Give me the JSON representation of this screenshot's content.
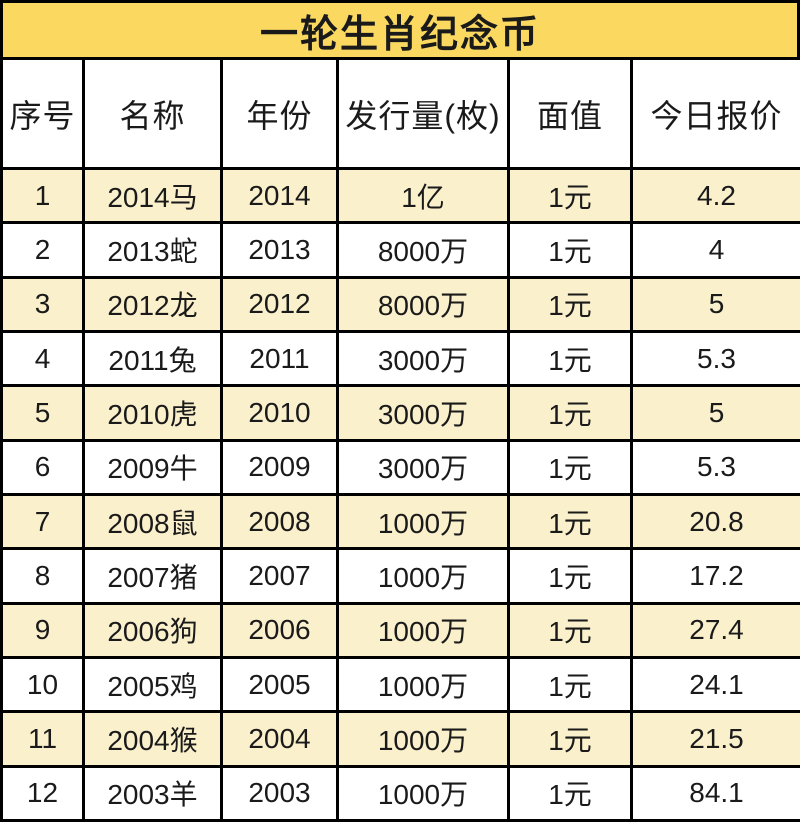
{
  "title": "一轮生肖纪念币",
  "colors": {
    "title_bg": "#FBD961",
    "alt_row_bg": "#FAF0CC",
    "row_bg": "#FFFFFF",
    "border": "#000000",
    "text": "#1A1A1A"
  },
  "chart_data": {
    "type": "table",
    "title": "一轮生肖纪念币",
    "columns": [
      "序号",
      "名称",
      "年份",
      "发行量(枚)",
      "面值",
      "今日报价"
    ],
    "rows": [
      [
        "1",
        "2014马",
        "2014",
        "1亿",
        "1元",
        "4.2"
      ],
      [
        "2",
        "2013蛇",
        "2013",
        "8000万",
        "1元",
        "4"
      ],
      [
        "3",
        "2012龙",
        "2012",
        "8000万",
        "1元",
        "5"
      ],
      [
        "4",
        "2011兔",
        "2011",
        "3000万",
        "1元",
        "5.3"
      ],
      [
        "5",
        "2010虎",
        "2010",
        "3000万",
        "1元",
        "5"
      ],
      [
        "6",
        "2009牛",
        "2009",
        "3000万",
        "1元",
        "5.3"
      ],
      [
        "7",
        "2008鼠",
        "2008",
        "1000万",
        "1元",
        "20.8"
      ],
      [
        "8",
        "2007猪",
        "2007",
        "1000万",
        "1元",
        "17.2"
      ],
      [
        "9",
        "2006狗",
        "2006",
        "1000万",
        "1元",
        "27.4"
      ],
      [
        "10",
        "2005鸡",
        "2005",
        "1000万",
        "1元",
        "24.1"
      ],
      [
        "11",
        "2004猴",
        "2004",
        "1000万",
        "1元",
        "21.5"
      ],
      [
        "12",
        "2003羊",
        "2003",
        "1000万",
        "1元",
        "84.1"
      ]
    ]
  }
}
